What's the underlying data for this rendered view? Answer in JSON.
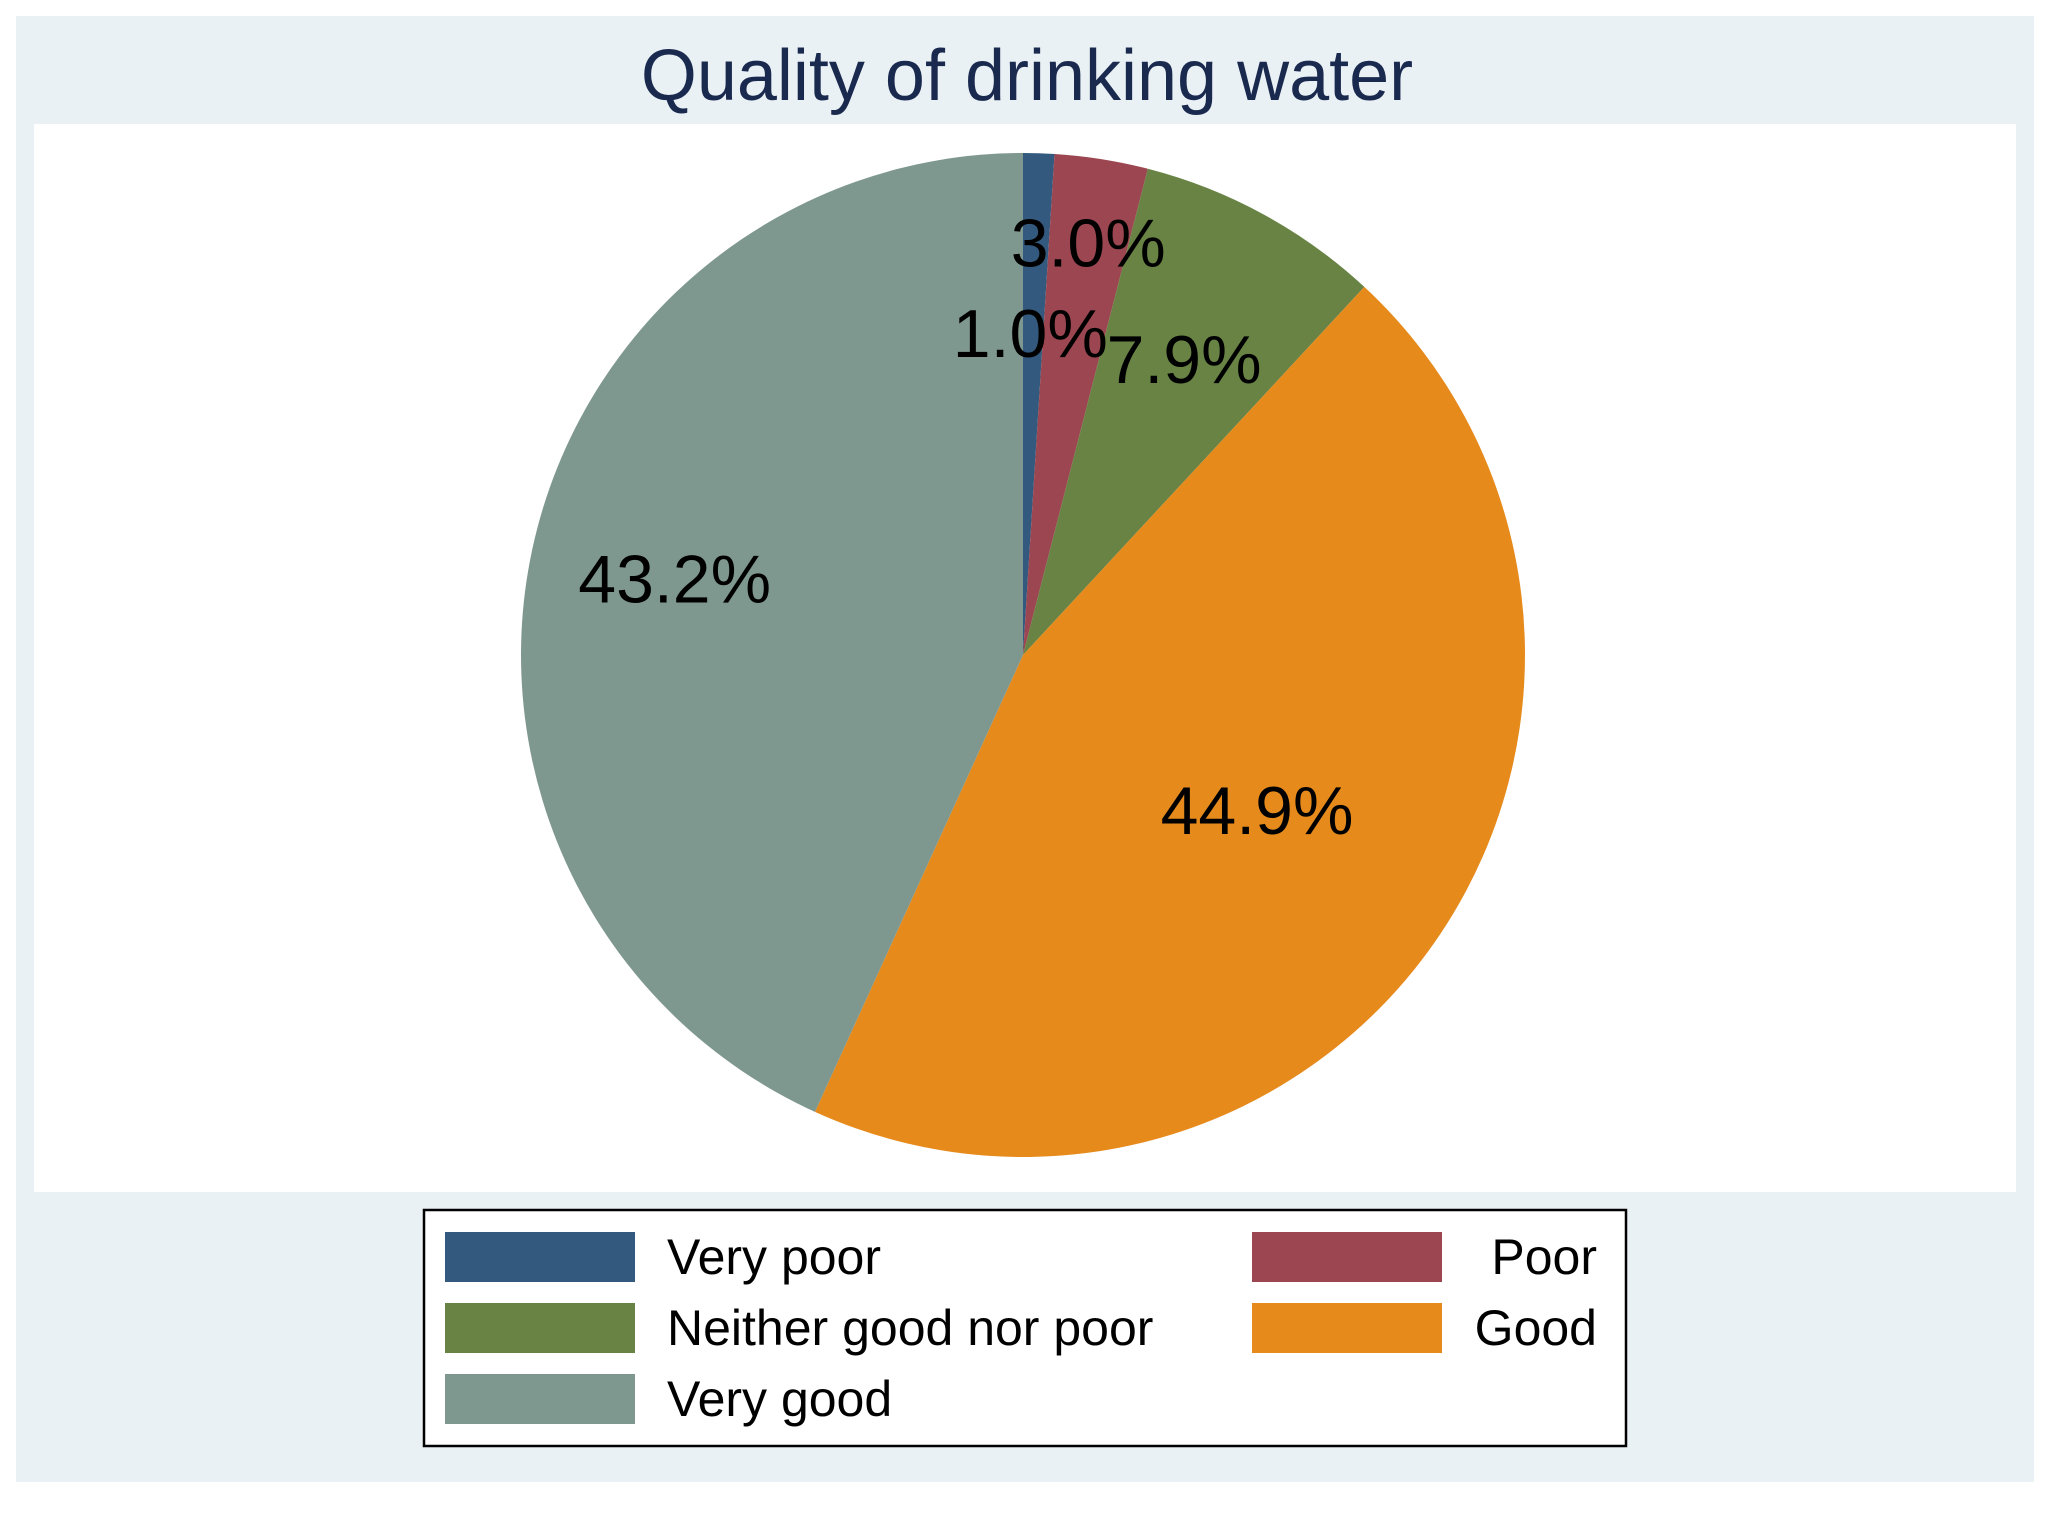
{
  "chart_data": {
    "type": "pie",
    "title": "Quality of drinking water",
    "categories": [
      "Very poor",
      "Poor",
      "Neither good nor poor",
      "Good",
      "Very good"
    ],
    "values": [
      1.0,
      3.0,
      7.9,
      44.9,
      43.2
    ],
    "labels": [
      "1.0%",
      "3.0%",
      "7.9%",
      "44.9%",
      "43.2%"
    ],
    "colors": [
      "#335a7e",
      "#9b4650",
      "#688344",
      "#e68a1b",
      "#7f988f"
    ],
    "start_angle": "12 o'clock",
    "direction": "clockwise",
    "legend": {
      "position": "bottom",
      "columns": 2
    }
  }
}
